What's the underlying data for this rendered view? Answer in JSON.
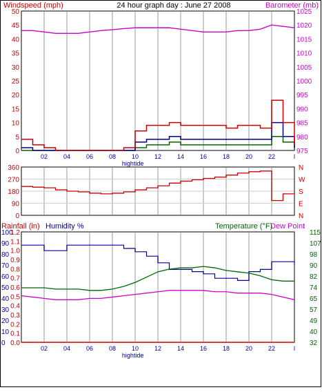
{
  "title": "24 hour graph day : June 27 2008",
  "colors": {
    "red": "#cc0000",
    "magenta": "#cc00cc",
    "blue": "#000099",
    "green": "#006600",
    "grid": "#cccccc",
    "frame": "#000000"
  },
  "x_ticks": [
    "02",
    "04",
    "06",
    "08",
    "10",
    "12",
    "14",
    "16",
    "18",
    "20",
    "22",
    "l"
  ],
  "hightide_label": "hightide",
  "chart_data": [
    {
      "type": "line",
      "name": "wind-barometer",
      "left_axis_label": "Windspeed (mph)",
      "right_axis_label": "Barometer (mb)",
      "left_ticks": [
        "0",
        "5",
        "10",
        "15",
        "20",
        "25",
        "30",
        "35",
        "40",
        "45",
        "50"
      ],
      "right_ticks": [
        "975",
        "980",
        "985",
        "990",
        "995",
        "1000",
        "1005",
        "1010",
        "1015",
        "1020",
        "1025"
      ],
      "ylim_left": [
        0,
        50
      ],
      "ylim_right": [
        975,
        1025
      ],
      "x_hours": [
        0,
        1,
        2,
        3,
        4,
        5,
        6,
        7,
        8,
        9,
        10,
        11,
        12,
        13,
        14,
        15,
        16,
        17,
        18,
        19,
        20,
        21,
        22,
        23,
        24
      ],
      "barometer": [
        1018,
        1018,
        1017.5,
        1017,
        1017,
        1017,
        1017.5,
        1018,
        1018.3,
        1018.7,
        1019,
        1019,
        1019,
        1019,
        1018.5,
        1018,
        1017.5,
        1017.5,
        1017.5,
        1018,
        1018,
        1018.5,
        1020,
        1019.5,
        1019
      ],
      "wind_gust": [
        4,
        2,
        1,
        0,
        0,
        0,
        0,
        0,
        0,
        1,
        7,
        9,
        9,
        10,
        9,
        9,
        9,
        9,
        8,
        9,
        9,
        8,
        18,
        10,
        2
      ],
      "wind_avg": [
        1,
        0,
        0,
        0,
        0,
        0,
        0,
        0,
        0,
        0,
        3,
        4,
        4,
        5,
        4,
        4,
        4,
        4,
        4,
        4,
        4,
        4,
        10,
        5,
        1
      ],
      "wind_low": [
        0,
        0,
        0,
        0,
        0,
        0,
        0,
        0,
        0,
        0,
        1,
        2,
        2,
        3,
        2,
        2,
        2,
        2,
        2,
        2,
        2,
        2,
        5,
        3,
        0
      ]
    },
    {
      "type": "line",
      "name": "wind-direction",
      "left_ticks": [
        "0",
        "90",
        "180",
        "270",
        "360"
      ],
      "right_ticks": [
        "N",
        "W",
        "S",
        "E",
        "N"
      ],
      "ylim": [
        0,
        360
      ],
      "x_hours": [
        0,
        1,
        2,
        3,
        4,
        5,
        6,
        7,
        8,
        9,
        10,
        11,
        12,
        13,
        14,
        15,
        16,
        17,
        18,
        19,
        20,
        21,
        22,
        23,
        24
      ],
      "direction": [
        215,
        210,
        205,
        190,
        180,
        175,
        165,
        160,
        165,
        175,
        190,
        205,
        220,
        240,
        255,
        265,
        275,
        285,
        300,
        315,
        325,
        330,
        110,
        160,
        150
      ]
    },
    {
      "type": "line",
      "name": "rain-humidity-temperature",
      "rain_axis_label": "Rainfall (in)",
      "humidity_axis_label": "Humidity %",
      "temperature_axis_label": "Temperature  (°F)",
      "dewpoint_axis_label": "Dew Point",
      "humidity_ticks": [
        "0",
        "10",
        "20",
        "30",
        "40",
        "50",
        "60",
        "70",
        "80",
        "90",
        "100"
      ],
      "rain_ticks": [
        "0.0",
        "0.1",
        "0.2",
        "0.3",
        "0.4",
        "0.5",
        "0.6",
        "0.7",
        "0.8",
        "0.9",
        "1.0",
        "1.1",
        "1.2"
      ],
      "temp_ticks": [
        "32",
        "40",
        "49",
        "57",
        "65",
        "74",
        "82",
        "90",
        "98",
        "107",
        "115"
      ],
      "ylim_humidity": [
        0,
        100
      ],
      "ylim_temp": [
        32,
        115
      ],
      "x_hours": [
        0,
        1,
        2,
        3,
        4,
        5,
        6,
        7,
        8,
        9,
        10,
        11,
        12,
        13,
        14,
        15,
        16,
        17,
        18,
        19,
        20,
        21,
        22,
        23,
        24
      ],
      "humidity": [
        88,
        88,
        83,
        83,
        88,
        88,
        88,
        88,
        88,
        85,
        82,
        78,
        72,
        66,
        66,
        64,
        62,
        58,
        58,
        56,
        64,
        66,
        73,
        73,
        70
      ],
      "temperature": [
        73,
        73,
        73,
        72,
        72,
        72,
        71,
        71,
        72,
        74,
        77,
        81,
        85,
        87,
        88,
        88,
        89,
        88,
        86,
        85,
        84,
        82,
        79,
        78,
        78
      ],
      "dew_point": [
        67,
        66,
        65,
        64,
        64,
        64,
        65,
        65,
        66,
        67,
        68,
        69,
        70,
        71,
        71,
        71,
        71,
        70,
        70,
        69,
        69,
        69,
        68,
        66,
        64
      ],
      "rainfall": [
        0,
        0,
        0,
        0,
        0,
        0,
        0,
        0,
        0,
        0,
        0,
        0,
        0,
        0,
        0,
        0,
        0,
        0,
        0,
        0,
        0,
        0,
        0,
        0,
        0
      ]
    }
  ]
}
